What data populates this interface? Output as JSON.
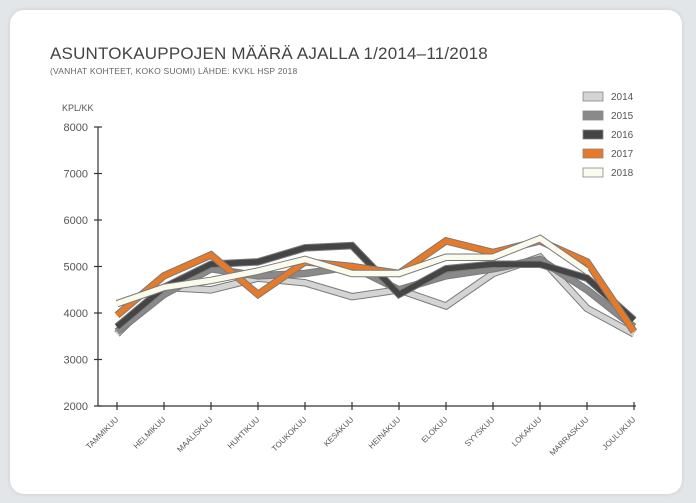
{
  "chart_data": {
    "type": "line",
    "title": "ASUNTOKAUPPOJEN MÄÄRÄ AJALLA 1/2014–11/2018",
    "subtitle": "(VANHAT KOHTEET, KOKO SUOMI) LÄHDE: KVKL HSP 2018",
    "ylabel": "KPL/KK",
    "xlabel": "",
    "ylim": [
      2000,
      8000
    ],
    "yticks": [
      "2000",
      "3000",
      "4000",
      "5000",
      "6000",
      "7000",
      "8000"
    ],
    "categories": [
      "TAMMIKUU",
      "HELMIKUU",
      "MAALISKUU",
      "HUHTIKUU",
      "TOUKOKUU",
      "KESÄKUU",
      "HEINÄKUU",
      "ELOKUU",
      "SYYSKUU",
      "LOKAKUU",
      "MARRASKUU",
      "JOULUKUU"
    ],
    "legend_position": "top-right",
    "grid": false,
    "series": [
      {
        "name": "2014",
        "color": "#d4d4d4",
        "values": [
          3550,
          4550,
          4500,
          4750,
          4650,
          4350,
          4500,
          4150,
          4850,
          5200,
          4100,
          3550
        ]
      },
      {
        "name": "2015",
        "color": "#8a8a8a",
        "values": [
          3600,
          4400,
          4950,
          4800,
          4850,
          5000,
          4500,
          4800,
          4950,
          5150,
          4500,
          3700
        ]
      },
      {
        "name": "2016",
        "color": "#454545",
        "values": [
          3700,
          4550,
          5050,
          5100,
          5400,
          5450,
          4400,
          4950,
          5050,
          5050,
          4750,
          3850
        ]
      },
      {
        "name": "2017",
        "color": "#e67a28",
        "values": [
          3950,
          4800,
          5250,
          4400,
          5100,
          5000,
          4850,
          5550,
          5300,
          5550,
          5100,
          3600
        ]
      },
      {
        "name": "2018",
        "color": "#fbfbed",
        "values": [
          4200,
          4550,
          4700,
          4900,
          5150,
          4850,
          4850,
          5200,
          5200,
          5600,
          4900,
          null
        ]
      }
    ]
  }
}
